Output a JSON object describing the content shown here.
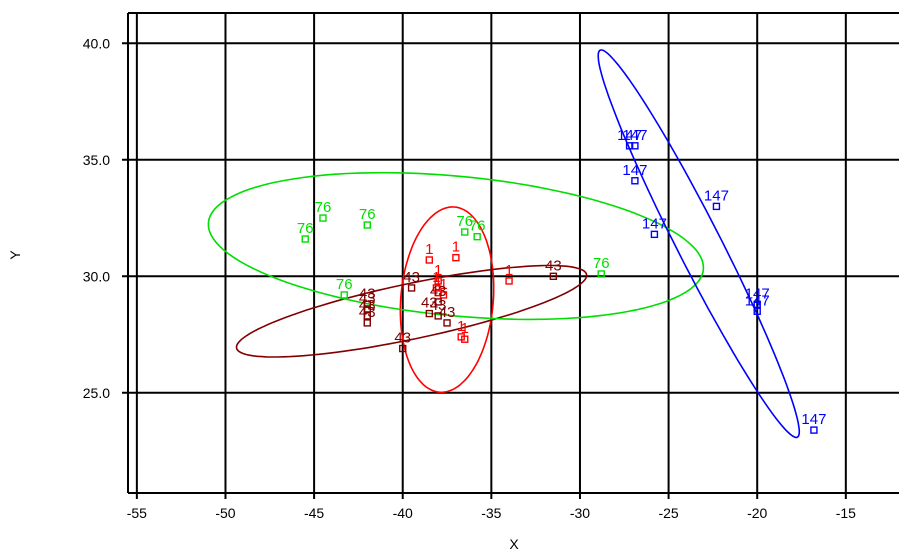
{
  "chart_data": {
    "type": "scatter",
    "xlabel": "X",
    "ylabel": "Y",
    "xlim": [
      -55.5,
      -12
    ],
    "ylim": [
      20.7,
      41.3
    ],
    "x_ticks": [
      -55,
      -50,
      -45,
      -40,
      -35,
      -30,
      -25,
      -20,
      -15
    ],
    "y_ticks": [
      25.0,
      30.0,
      35.0,
      40.0
    ],
    "x_tick_labels": [
      "-55",
      "-50",
      "-45",
      "-40",
      "-35",
      "-30",
      "-25",
      "-20",
      "-15"
    ],
    "y_tick_labels": [
      "25.0",
      "30.0",
      "35.0",
      "40.0"
    ],
    "grid": true,
    "series": [
      {
        "label": "1",
        "color": "#ff0000",
        "marker": "open-square",
        "ellipse": {
          "center": [
            -37.5,
            29.0
          ],
          "semi_axes": [
            2.6,
            4.0
          ],
          "angle_deg": -8
        },
        "points": [
          {
            "x": -38.5,
            "y": 30.7
          },
          {
            "x": -37.0,
            "y": 30.8
          },
          {
            "x": -38.0,
            "y": 29.8
          },
          {
            "x": -38.1,
            "y": 29.5
          },
          {
            "x": -38.0,
            "y": 29.3
          },
          {
            "x": -37.7,
            "y": 29.2
          },
          {
            "x": -34.0,
            "y": 29.8
          },
          {
            "x": -36.7,
            "y": 27.4
          },
          {
            "x": -36.5,
            "y": 27.3
          }
        ]
      },
      {
        "label": "43",
        "color": "#800000",
        "marker": "open-square",
        "ellipse": {
          "center": [
            -39.5,
            28.5
          ],
          "semi_axes": [
            10.0,
            1.2
          ],
          "angle_deg": 9
        },
        "points": [
          {
            "x": -31.5,
            "y": 30.0
          },
          {
            "x": -39.5,
            "y": 29.5
          },
          {
            "x": -42.0,
            "y": 28.8
          },
          {
            "x": -42.0,
            "y": 28.6
          },
          {
            "x": -42.0,
            "y": 28.3
          },
          {
            "x": -42.0,
            "y": 28.0
          },
          {
            "x": -38.5,
            "y": 28.4
          },
          {
            "x": -38.0,
            "y": 28.3
          },
          {
            "x": -37.5,
            "y": 28.0
          },
          {
            "x": -38.0,
            "y": 28.9
          },
          {
            "x": -40.0,
            "y": 26.9
          }
        ]
      },
      {
        "label": "76",
        "color": "#00dd00",
        "marker": "open-square",
        "ellipse": {
          "center": [
            -37.0,
            31.3
          ],
          "semi_axes": [
            14.0,
            3.0
          ],
          "angle_deg": -4
        },
        "points": [
          {
            "x": -44.5,
            "y": 32.5
          },
          {
            "x": -45.5,
            "y": 31.6
          },
          {
            "x": -42.0,
            "y": 32.2
          },
          {
            "x": -36.5,
            "y": 31.9
          },
          {
            "x": -35.8,
            "y": 31.7
          },
          {
            "x": -43.3,
            "y": 29.2
          },
          {
            "x": -28.8,
            "y": 30.1
          }
        ]
      },
      {
        "label": "147",
        "color": "#0000ff",
        "marker": "open-square",
        "ellipse": {
          "center": [
            -23.3,
            31.4
          ],
          "semi_axes": [
            10.0,
            1.15
          ],
          "angle_deg": -56
        },
        "points": [
          {
            "x": -27.2,
            "y": 35.6
          },
          {
            "x": -26.9,
            "y": 35.6
          },
          {
            "x": -26.9,
            "y": 34.1
          },
          {
            "x": -25.8,
            "y": 31.8
          },
          {
            "x": -22.3,
            "y": 33.0
          },
          {
            "x": -20.0,
            "y": 28.8
          },
          {
            "x": -20.0,
            "y": 28.5
          },
          {
            "x": -16.8,
            "y": 23.4
          }
        ]
      }
    ]
  }
}
